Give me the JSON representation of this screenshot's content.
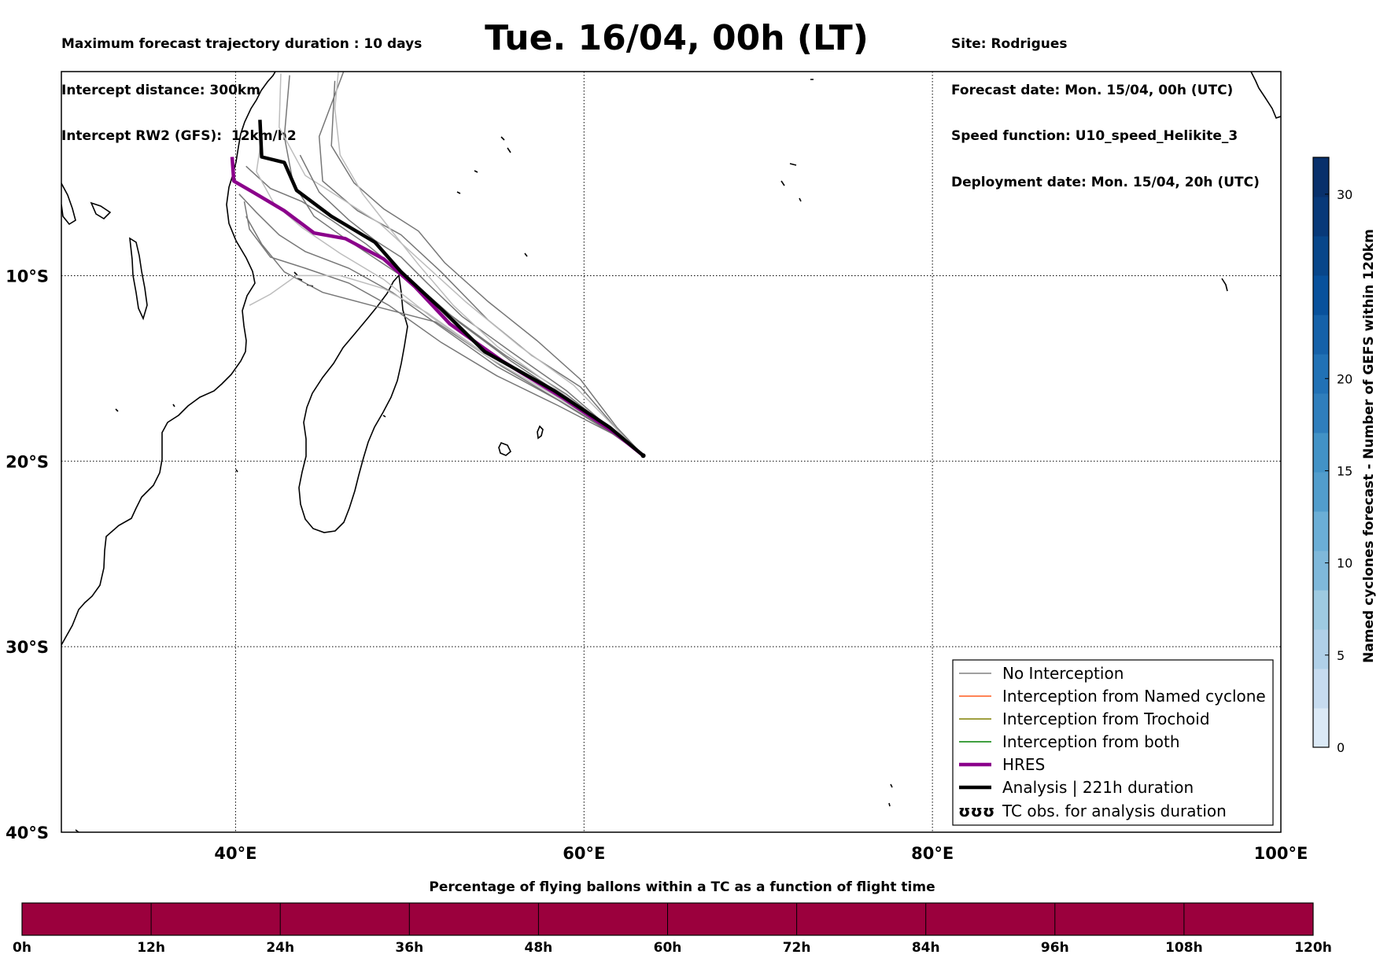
{
  "header": {
    "left": [
      "Maximum forecast trajectory duration : 10 days",
      "Intercept distance: 300km",
      "Intercept RW2 (GFS):  12km/h2"
    ],
    "title": "Tue. 16/04, 00h (LT)",
    "right": [
      "Site: Rodrigues",
      "Forecast date: Mon. 15/04, 00h (UTC)",
      "Speed function: U10_speed_Helikite_3",
      "Deployment date: Mon. 15/04, 20h (UTC)"
    ]
  },
  "chart_data": [
    {
      "type": "line",
      "subtype": "map-trajectories",
      "xlim": [
        30,
        100
      ],
      "ylim": [
        -40,
        1
      ],
      "x_ticks": [
        40,
        60,
        80,
        100
      ],
      "x_tick_labels": [
        "40°E",
        "60°E",
        "80°E",
        "100°E"
      ],
      "y_ticks": [
        -10,
        -20,
        -30,
        -40
      ],
      "y_tick_labels": [
        "10°S",
        "20°S",
        "30°S",
        "40°S"
      ],
      "grid": true,
      "origin": {
        "lon": 63.4,
        "lat": -19.7
      },
      "hres": [
        [
          63.4,
          -19.7
        ],
        [
          61.8,
          -18.5
        ],
        [
          58.8,
          -16.6
        ],
        [
          55.3,
          -14.6
        ],
        [
          52.3,
          -12.6
        ],
        [
          50.3,
          -10.6
        ],
        [
          48.5,
          -9.1
        ],
        [
          46.3,
          -8.0
        ],
        [
          44.5,
          -7.7
        ],
        [
          42.8,
          -6.5
        ],
        [
          41.0,
          -5.5
        ],
        [
          39.9,
          -4.9
        ],
        [
          39.8,
          -3.6
        ]
      ],
      "analysis": [
        [
          63.4,
          -19.7
        ],
        [
          61.5,
          -18.2
        ],
        [
          58.3,
          -16.2
        ],
        [
          54.3,
          -14.1
        ],
        [
          51.8,
          -11.8
        ],
        [
          49.5,
          -9.8
        ],
        [
          48.0,
          -8.2
        ],
        [
          45.5,
          -6.8
        ],
        [
          43.5,
          -5.4
        ],
        [
          42.8,
          -3.9
        ],
        [
          41.5,
          -3.6
        ],
        [
          41.4,
          -1.6
        ]
      ],
      "gefs_members": [
        [
          [
            63.4,
            -19.7
          ],
          [
            61.7,
            -18.4
          ],
          [
            59.0,
            -16.4
          ],
          [
            55.5,
            -14.3
          ],
          [
            52.3,
            -12.1
          ],
          [
            49.5,
            -10.0
          ],
          [
            46.3,
            -8.0
          ],
          [
            44.5,
            -6.8
          ],
          [
            43.3,
            -5.0
          ],
          [
            42.8,
            -2.5
          ],
          [
            43.1,
            0.8
          ]
        ],
        [
          [
            63.4,
            -19.7
          ],
          [
            62.0,
            -18.4
          ],
          [
            59.8,
            -16.0
          ],
          [
            57.0,
            -14.3
          ],
          [
            54.5,
            -12.4
          ],
          [
            51.8,
            -9.8
          ],
          [
            49.5,
            -7.8
          ],
          [
            47.0,
            -6.5
          ],
          [
            45.0,
            -4.9
          ],
          [
            44.8,
            -2.5
          ],
          [
            46.2,
            1.0
          ]
        ],
        [
          [
            63.4,
            -19.7
          ],
          [
            61.9,
            -18.3
          ],
          [
            59.4,
            -15.9
          ],
          [
            56.3,
            -13.8
          ],
          [
            53.2,
            -11.4
          ],
          [
            50.5,
            -9.1
          ],
          [
            48.3,
            -7.2
          ],
          [
            46.0,
            -5.8
          ],
          [
            44.0,
            -4.6
          ],
          [
            42.5,
            -2.0
          ],
          [
            42.6,
            0.9
          ]
        ],
        [
          [
            63.4,
            -19.7
          ],
          [
            61.6,
            -18.5
          ],
          [
            58.5,
            -16.7
          ],
          [
            55.0,
            -14.9
          ],
          [
            52.0,
            -12.9
          ],
          [
            49.0,
            -10.9
          ],
          [
            46.5,
            -9.6
          ],
          [
            44.0,
            -8.7
          ],
          [
            42.5,
            -7.8
          ],
          [
            41.2,
            -6.6
          ],
          [
            40.2,
            -5.6
          ]
        ],
        [
          [
            63.4,
            -19.7
          ],
          [
            61.8,
            -18.6
          ],
          [
            58.5,
            -17.0
          ],
          [
            55.0,
            -15.4
          ],
          [
            51.8,
            -13.6
          ],
          [
            48.8,
            -11.6
          ],
          [
            46.5,
            -10.4
          ],
          [
            44.0,
            -9.6
          ],
          [
            42.0,
            -9.0
          ],
          [
            40.8,
            -7.5
          ],
          [
            40.5,
            -6.0
          ]
        ],
        [
          [
            63.4,
            -19.7
          ],
          [
            61.5,
            -18.3
          ],
          [
            58.0,
            -16.1
          ],
          [
            54.0,
            -14.0
          ],
          [
            51.0,
            -12.0
          ],
          [
            48.5,
            -10.7
          ],
          [
            46.0,
            -10.0
          ],
          [
            43.5,
            -10.0
          ],
          [
            42.0,
            -11.0
          ],
          [
            40.8,
            -11.6
          ]
        ],
        [
          [
            63.4,
            -19.7
          ],
          [
            61.9,
            -18.2
          ],
          [
            59.8,
            -15.6
          ],
          [
            57.3,
            -13.5
          ],
          [
            54.5,
            -11.4
          ],
          [
            52.0,
            -9.3
          ],
          [
            50.5,
            -7.6
          ],
          [
            48.5,
            -6.4
          ],
          [
            46.8,
            -5.0
          ],
          [
            45.5,
            -3.0
          ],
          [
            45.7,
            0.5
          ]
        ],
        [
          [
            63.4,
            -19.7
          ],
          [
            61.7,
            -18.4
          ],
          [
            59.0,
            -16.2
          ],
          [
            55.8,
            -14.1
          ],
          [
            53.0,
            -12.2
          ],
          [
            51.0,
            -10.4
          ],
          [
            49.5,
            -9.0
          ],
          [
            48.0,
            -8.1
          ],
          [
            46.5,
            -7.0
          ],
          [
            44.8,
            -5.5
          ],
          [
            43.7,
            -3.5
          ]
        ],
        [
          [
            63.4,
            -19.7
          ],
          [
            61.6,
            -18.3
          ],
          [
            58.4,
            -16.1
          ],
          [
            55.0,
            -13.8
          ],
          [
            52.5,
            -11.6
          ],
          [
            50.5,
            -9.4
          ],
          [
            48.8,
            -7.4
          ],
          [
            47.3,
            -5.6
          ],
          [
            46.0,
            -3.5
          ],
          [
            45.7,
            -1.0
          ],
          [
            45.9,
            1.0
          ]
        ],
        [
          [
            63.4,
            -19.7
          ],
          [
            61.8,
            -18.5
          ],
          [
            59.0,
            -16.6
          ],
          [
            55.8,
            -14.6
          ],
          [
            52.8,
            -12.5
          ],
          [
            50.0,
            -10.2
          ],
          [
            47.5,
            -8.3
          ],
          [
            45.5,
            -7.0
          ],
          [
            43.8,
            -6.0
          ],
          [
            42.0,
            -5.3
          ],
          [
            40.6,
            -4.1
          ]
        ],
        [
          [
            63.4,
            -19.7
          ],
          [
            61.7,
            -18.5
          ],
          [
            58.7,
            -16.8
          ],
          [
            55.3,
            -14.9
          ],
          [
            51.5,
            -12.5
          ],
          [
            47.8,
            -11.6
          ],
          [
            45.0,
            -10.9
          ],
          [
            42.8,
            -9.8
          ],
          [
            41.5,
            -8.3
          ],
          [
            40.6,
            -6.8
          ]
        ],
        [
          [
            63.4,
            -19.7
          ],
          [
            61.6,
            -18.4
          ],
          [
            58.2,
            -16.4
          ],
          [
            54.5,
            -14.4
          ],
          [
            51.2,
            -12.2
          ],
          [
            48.5,
            -10.2
          ],
          [
            46.0,
            -8.8
          ],
          [
            43.8,
            -7.4
          ],
          [
            42.2,
            -6.1
          ],
          [
            41.2,
            -4.4
          ],
          [
            41.5,
            -2.5
          ]
        ]
      ],
      "named_cyclone_colorbar": {
        "label": "Named cyclones forecast - Number of GEFS within 120km",
        "ticks": [
          "0",
          "5",
          "10",
          "15",
          "20",
          "30"
        ],
        "tick_values": [
          0,
          5,
          10,
          15,
          20,
          30
        ],
        "vmin": 0,
        "vmax": 32,
        "colors": [
          "#dbe9f6",
          "#c6dbef",
          "#b0d0e8",
          "#9ecae1",
          "#7fb8da",
          "#6baed6",
          "#529dcc",
          "#4292c6",
          "#2f7ebc",
          "#2171b5",
          "#1561a9",
          "#08519c",
          "#08468a",
          "#083979",
          "#08306b"
        ]
      }
    },
    {
      "type": "bar",
      "subtype": "colorbar",
      "title": "Percentage of flying ballons within a TC as a function of flight time",
      "categories": [
        "0h",
        "12h",
        "24h",
        "36h",
        "48h",
        "60h",
        "72h",
        "84h",
        "96h",
        "108h",
        "120h"
      ],
      "x_range": [
        0,
        120
      ],
      "bar_color": "#9b003d"
    }
  ],
  "legend": {
    "placement": "lower-right",
    "items": [
      {
        "label": "No Interception",
        "color": "#808080",
        "style": "thin"
      },
      {
        "label": "Interception from Named cyclone",
        "color": "#ff5a1f",
        "style": "thin"
      },
      {
        "label": "Interception from Trochoid",
        "color": "#808000",
        "style": "thin"
      },
      {
        "label": "Interception from both",
        "color": "#008000",
        "style": "thin"
      },
      {
        "label": "HRES",
        "color": "#8b008b",
        "style": "thick"
      },
      {
        "label": "Analysis | 221h duration",
        "color": "#000000",
        "style": "thick"
      },
      {
        "label": "TC obs. for analysis duration",
        "color": "#000000",
        "style": "symbol",
        "symbol": "ʊʊʊ"
      }
    ]
  }
}
